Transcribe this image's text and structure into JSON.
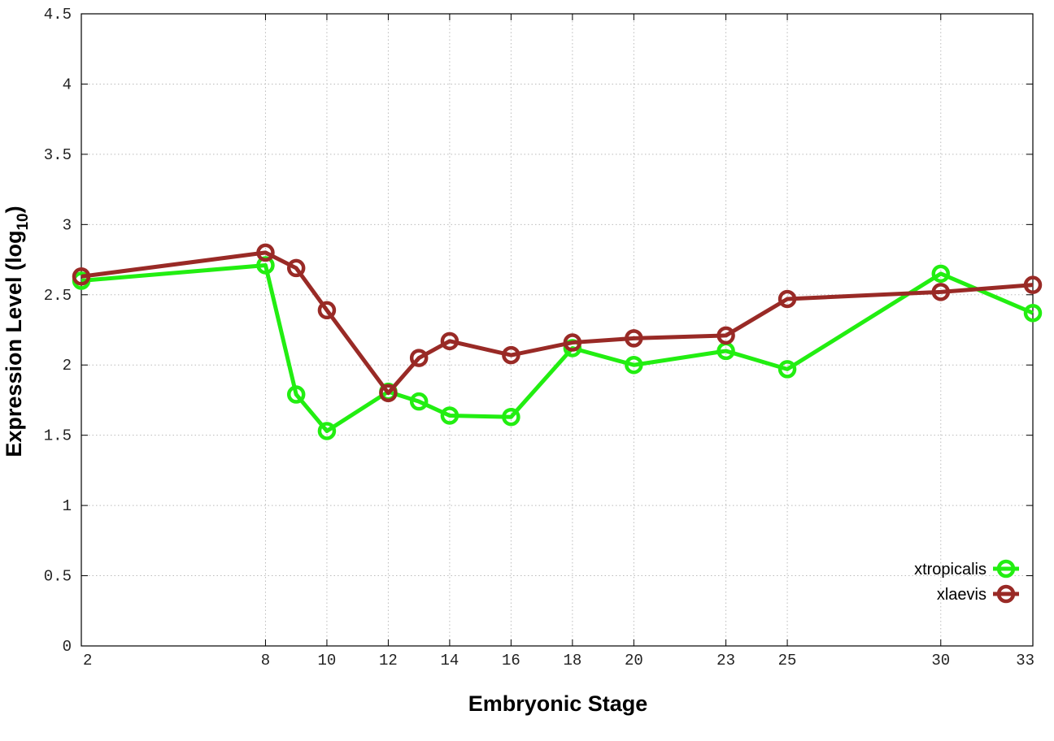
{
  "chart_data": {
    "type": "line",
    "title": "",
    "xlabel": "Embryonic Stage",
    "ylabel": "Expression Level (log",
    "ylabel_subscript": "10",
    "ylabel_close": ")",
    "x_scale": "linear",
    "xlim": [
      2,
      33
    ],
    "ylim": [
      0,
      4.5
    ],
    "x_ticks": [
      2,
      8,
      10,
      12,
      14,
      16,
      18,
      20,
      23,
      25,
      30,
      33
    ],
    "y_ticks": [
      0,
      0.5,
      1,
      1.5,
      2,
      2.5,
      3,
      3.5,
      4,
      4.5
    ],
    "y_tick_labels": [
      "0",
      "0.5",
      "1",
      "1.5",
      "2",
      "2.5",
      "3",
      "3.5",
      "4",
      "4.5"
    ],
    "grid": true,
    "legend_position": "bottom-right",
    "x": [
      2,
      8,
      9,
      10,
      12,
      13,
      14,
      16,
      18,
      20,
      23,
      25,
      30,
      33
    ],
    "series": [
      {
        "name": "xtropicalis",
        "color": "#22ee11",
        "marker": "open-circle",
        "values": [
          2.6,
          2.71,
          1.79,
          1.53,
          1.81,
          1.74,
          1.64,
          1.63,
          2.12,
          2.0,
          2.1,
          1.97,
          2.65,
          2.37
        ]
      },
      {
        "name": "xlaevis",
        "color": "#992a26",
        "marker": "open-circle",
        "values": [
          2.63,
          2.8,
          2.69,
          2.39,
          1.8,
          2.05,
          2.17,
          2.07,
          2.16,
          2.19,
          2.21,
          2.47,
          2.52,
          2.57
        ]
      }
    ]
  }
}
